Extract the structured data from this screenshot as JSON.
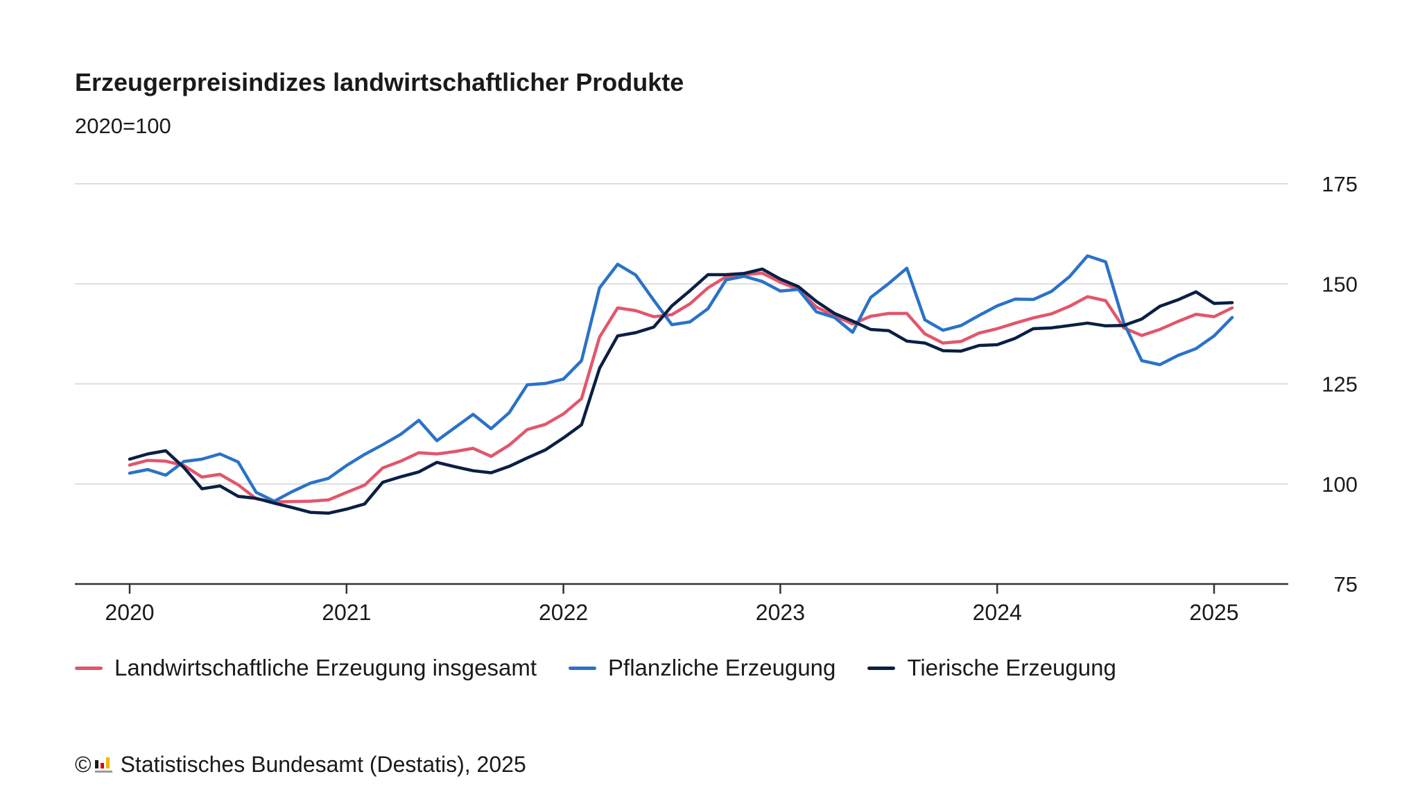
{
  "header": {
    "title": "Erzeugerpreisindizes landwirtschaftlicher Produkte",
    "subtitle": "2020=100"
  },
  "footer": {
    "copyright_symbol": "©",
    "source": "Statistisches Bundesamt (Destatis), 2025"
  },
  "colors": {
    "gesamt": "#e2566c",
    "pflanzlich": "#2b72c7",
    "tierisch": "#0a1f44",
    "grid": "#d4d4d4",
    "axis": "#333333"
  },
  "chart_data": {
    "type": "line",
    "title": "Erzeugerpreisindizes landwirtschaftlicher Produkte",
    "subtitle": "2020=100",
    "xlabel": "",
    "ylabel": "",
    "xlim": [
      2020,
      2025.167
    ],
    "ylim": [
      75,
      175
    ],
    "yticks": [
      75,
      100,
      125,
      150,
      175
    ],
    "xticks": [
      "2020",
      "2021",
      "2022",
      "2023",
      "2024",
      "2025"
    ],
    "y_axis_position": "right",
    "grid": "horizontal",
    "legend_position": "bottom",
    "x_start": "2020-01",
    "x_frequency": "monthly",
    "series": [
      {
        "name": "Landwirtschaftliche Erzeugung insgesamt",
        "color_key": "gesamt",
        "values": [
          104.7,
          105.9,
          105.7,
          104.6,
          101.7,
          102.4,
          99.8,
          96.3,
          95.5,
          95.6,
          95.7,
          96.0,
          97.9,
          99.7,
          104.0,
          105.7,
          107.8,
          107.5,
          108.1,
          108.9,
          106.9,
          109.7,
          113.6,
          114.9,
          117.5,
          121.3,
          136.7,
          144.0,
          143.3,
          141.8,
          142.3,
          145.0,
          149.0,
          151.8,
          152.3,
          152.7,
          150.4,
          148.6,
          144.2,
          142.0,
          140.0,
          141.9,
          142.6,
          142.6,
          137.5,
          135.2,
          135.6,
          137.7,
          138.8,
          140.2,
          141.5,
          142.5,
          144.4,
          146.8,
          145.8,
          139.0,
          137.1,
          138.6,
          140.6,
          142.4,
          141.8,
          144.0
        ]
      },
      {
        "name": "Pflanzliche Erzeugung",
        "color_key": "pflanzlich",
        "values": [
          102.7,
          103.6,
          102.2,
          105.6,
          106.2,
          107.5,
          105.5,
          97.9,
          95.7,
          98.1,
          100.2,
          101.4,
          104.6,
          107.4,
          109.8,
          112.4,
          115.9,
          110.8,
          114.1,
          117.4,
          113.8,
          117.8,
          124.8,
          125.1,
          126.2,
          130.8,
          149.0,
          154.9,
          152.2,
          145.9,
          139.8,
          140.5,
          143.8,
          151.0,
          151.9,
          150.6,
          148.2,
          148.6,
          143.0,
          141.6,
          137.9,
          146.6,
          150.1,
          153.9,
          141.0,
          138.4,
          139.6,
          142.1,
          144.5,
          146.2,
          146.1,
          148.1,
          151.8,
          157.0,
          155.5,
          140.3,
          130.8,
          129.8,
          132.1,
          133.8,
          137.0,
          141.6
        ]
      },
      {
        "name": "Tierische Erzeugung",
        "color_key": "tierisch",
        "values": [
          106.2,
          107.5,
          108.3,
          104.1,
          98.8,
          99.5,
          96.9,
          96.4,
          95.2,
          94.1,
          92.9,
          92.7,
          93.7,
          95.0,
          100.4,
          101.8,
          103.0,
          105.4,
          104.3,
          103.3,
          102.8,
          104.4,
          106.5,
          108.5,
          111.5,
          114.8,
          128.9,
          137.0,
          137.8,
          139.2,
          144.5,
          148.3,
          152.3,
          152.3,
          152.6,
          153.7,
          151.2,
          149.3,
          145.6,
          142.6,
          140.7,
          138.6,
          138.3,
          135.7,
          135.2,
          133.3,
          133.2,
          134.6,
          134.8,
          136.4,
          138.8,
          139.0,
          139.6,
          140.2,
          139.5,
          139.6,
          141.2,
          144.4,
          146.0,
          148.0,
          145.1,
          145.3
        ]
      }
    ]
  }
}
